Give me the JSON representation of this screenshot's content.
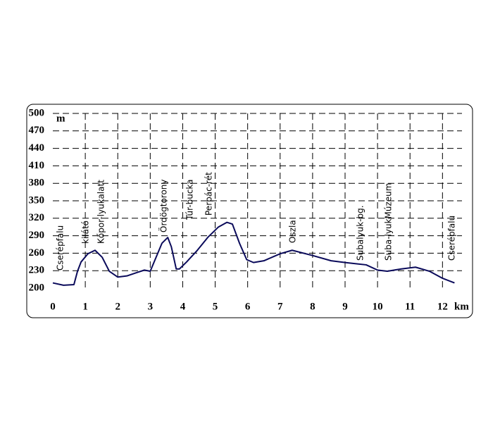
{
  "chart_data": {
    "type": "line",
    "y_label": "m",
    "x_label": "km",
    "annotations": [
      "Cserépfalu",
      "kilátó",
      "Kőpor-lyukalatt",
      "Ördögtorony",
      "Túr-bucka",
      "Perpác-rét",
      "Oszla",
      "Subalyuk-bg.",
      "Suba-lyukMúzeum",
      "Cserépfalu"
    ],
    "x": [
      0,
      0.33,
      0.65,
      0.76,
      0.87,
      1.08,
      1.3,
      1.52,
      1.74,
      2.0,
      2.28,
      2.6,
      2.82,
      3.0,
      3.15,
      3.36,
      3.54,
      3.65,
      3.8,
      3.9,
      4.12,
      4.45,
      4.77,
      5.1,
      5.36,
      5.53,
      5.75,
      5.97,
      6.18,
      6.5,
      7.0,
      7.37,
      8.0,
      8.57,
      9.0,
      9.65,
      10.0,
      10.3,
      10.73,
      11.17,
      11.6,
      12.0,
      12.37
    ],
    "series": [
      {
        "color": "#0a0a5a",
        "values": [
          209,
          205,
          206,
          229,
          245,
          259,
          265,
          253,
          229,
          219,
          221,
          227,
          231,
          229,
          249,
          277,
          287,
          271,
          233,
          233,
          245,
          265,
          287,
          305,
          313,
          310,
          277,
          249,
          244,
          247,
          259,
          265,
          256,
          247,
          244,
          240,
          231,
          229,
          233,
          236,
          229,
          217,
          209
        ]
      }
    ],
    "xlim": [
      0,
      12.6
    ],
    "xticks": [
      0,
      1,
      2,
      3,
      4,
      5,
      6,
      7,
      8,
      9,
      10,
      11,
      12
    ],
    "ylim": [
      200,
      500
    ],
    "yticks": [
      200,
      230,
      260,
      290,
      320,
      350,
      380,
      410,
      440,
      470,
      500
    ],
    "grid": true
  }
}
